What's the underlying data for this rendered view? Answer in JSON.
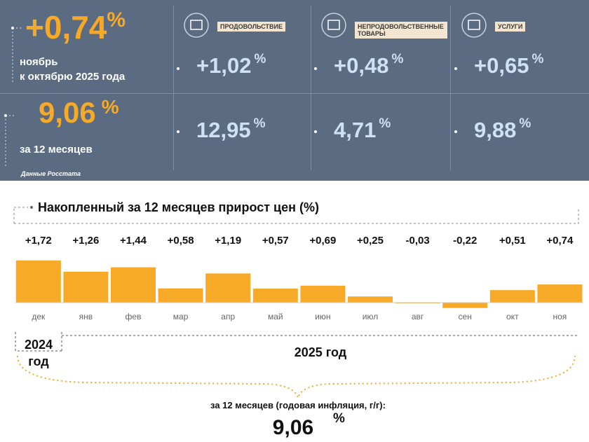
{
  "summary": {
    "month_change": "+0,74",
    "unit": "%",
    "month_label_1": "ноябрь",
    "month_label_2": "к октябрю 2025 года",
    "year_change": "9,06",
    "year_label": "за 12 месяцев",
    "source": "Данные Росстата"
  },
  "groups": [
    {
      "name": "ПРОДОВОЛЬСТВИЕ",
      "month": "+1,02",
      "year": "12,95"
    },
    {
      "name": "НЕПРОДОВОЛЬСТВЕННЫЕ ТОВАРЫ",
      "month": "+0,48",
      "year": "4,71"
    },
    {
      "name": "УСЛУГИ",
      "month": "+0,65",
      "year": "9,88"
    }
  ],
  "chart_data": {
    "type": "bar",
    "title": "Накопленный за 12 месяцев прирост цен (%)",
    "categories": [
      "дек",
      "янв",
      "фев",
      "мар",
      "апр",
      "май",
      "июн",
      "июл",
      "авг",
      "сен",
      "окт",
      "ноя"
    ],
    "values": [
      1.72,
      1.26,
      1.44,
      0.58,
      1.19,
      0.57,
      0.69,
      0.25,
      -0.03,
      -0.22,
      0.51,
      0.74
    ],
    "value_labels": [
      "+1,72",
      "+1,26",
      "+1,44",
      "+0,58",
      "+1,19",
      "+0,57",
      "+0,69",
      "+0,25",
      "-0,03",
      "-0,22",
      "+0,51",
      "+0,74"
    ],
    "color": "#f7a928",
    "annotations": [
      "2024 год",
      "2025 год",
      "за 12 месяцев (годовая инфляция, г/г):"
    ],
    "total": "9,06",
    "total_unit": "%"
  }
}
